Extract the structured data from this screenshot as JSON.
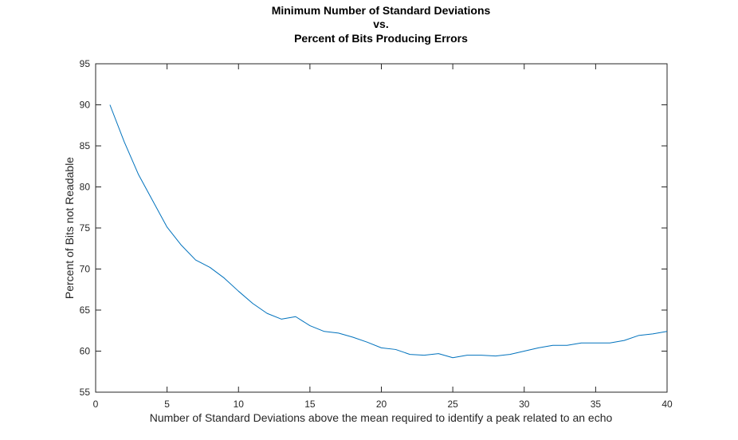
{
  "chart_data": {
    "type": "line",
    "title": [
      "Minimum Number of Standard Deviations",
      "vs.",
      "Percent of Bits Producing Errors"
    ],
    "xlabel": "Number of Standard Deviations above the mean required to identify a peak related to an echo",
    "ylabel": "Percent of Bits not Readable",
    "xlim": [
      0,
      40
    ],
    "ylim": [
      55,
      95
    ],
    "xticks": [
      0,
      5,
      10,
      15,
      20,
      25,
      30,
      35,
      40
    ],
    "yticks": [
      55,
      60,
      65,
      70,
      75,
      80,
      85,
      90,
      95
    ],
    "grid": false,
    "series": [
      {
        "color": "#0072BD",
        "x": [
          1,
          2,
          3,
          4,
          5,
          6,
          7,
          8,
          9,
          10,
          11,
          12,
          13,
          14,
          15,
          16,
          17,
          18,
          19,
          20,
          21,
          22,
          23,
          24,
          25,
          26,
          27,
          28,
          29,
          30,
          31,
          32,
          33,
          34,
          35,
          36,
          37,
          38,
          39,
          40
        ],
        "y": [
          90.0,
          85.5,
          81.5,
          78.3,
          75.1,
          72.9,
          71.1,
          70.2,
          68.9,
          67.3,
          65.8,
          64.6,
          63.9,
          64.2,
          63.1,
          62.4,
          62.2,
          61.7,
          61.1,
          60.4,
          60.2,
          59.6,
          59.5,
          59.7,
          59.2,
          59.5,
          59.5,
          59.4,
          59.6,
          60.0,
          60.4,
          60.7,
          60.7,
          61.0,
          61.0,
          61.0,
          61.3,
          61.9,
          62.1,
          62.4
        ]
      }
    ]
  }
}
